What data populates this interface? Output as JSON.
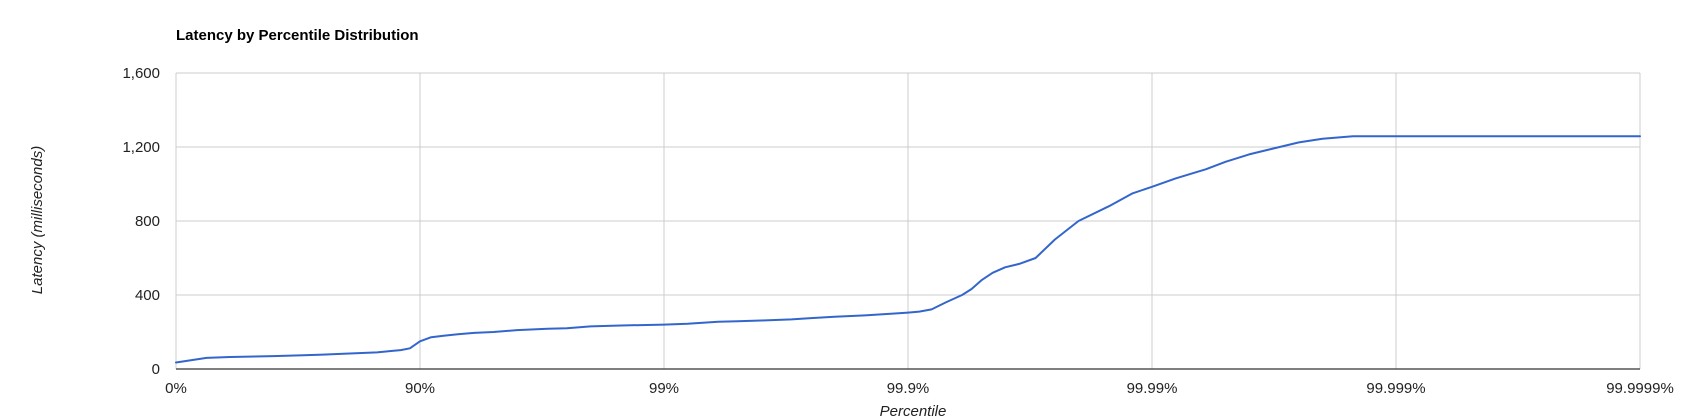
{
  "chart_data": {
    "type": "line",
    "title": "Latency by Percentile Distribution",
    "xlabel": "Percentile",
    "ylabel": "Latency (milliseconds)",
    "x_scale": "log-percentile",
    "x_ticks": [
      0,
      90,
      99,
      99.9,
      99.99,
      99.999,
      99.9999
    ],
    "x_tick_labels": [
      "0%",
      "90%",
      "99%",
      "99.9%",
      "99.99%",
      "99.999%",
      "99.9999%"
    ],
    "ylim": [
      0,
      1600
    ],
    "y_ticks": [
      0,
      400,
      800,
      1200,
      1600
    ],
    "y_tick_labels": [
      "0",
      "400",
      "800",
      "1,200",
      "1,600"
    ],
    "grid": true,
    "legend": "none",
    "series": [
      {
        "color": "#3366cc",
        "x": [
          0,
          25,
          40,
          60,
          70,
          75,
          80,
          85,
          87,
          88,
          89,
          90,
          91,
          92,
          93,
          94,
          95,
          96,
          97,
          97.5,
          98,
          98.5,
          99,
          99.2,
          99.4,
          99.5,
          99.6,
          99.7,
          99.75,
          99.8,
          99.85,
          99.88,
          99.9,
          99.91,
          99.92,
          99.93,
          99.94,
          99.945,
          99.95,
          99.955,
          99.96,
          99.965,
          99.97,
          99.975,
          99.98,
          99.985,
          99.988,
          99.99,
          99.992,
          99.994,
          99.995,
          99.996,
          99.997,
          99.9975,
          99.998,
          99.9985,
          99.999,
          99.9999
        ],
        "values": [
          35,
          60,
          65,
          70,
          74,
          78,
          83,
          90,
          98,
          102,
          112,
          150,
          172,
          180,
          188,
          195,
          200,
          210,
          218,
          220,
          230,
          235,
          240,
          245,
          255,
          258,
          262,
          268,
          275,
          282,
          290,
          298,
          305,
          310,
          322,
          360,
          400,
          432,
          480,
          520,
          550,
          568,
          600,
          700,
          800,
          880,
          950,
          985,
          1030,
          1080,
          1120,
          1160,
          1200,
          1225,
          1245,
          1258,
          1258,
          1258
        ]
      }
    ]
  }
}
